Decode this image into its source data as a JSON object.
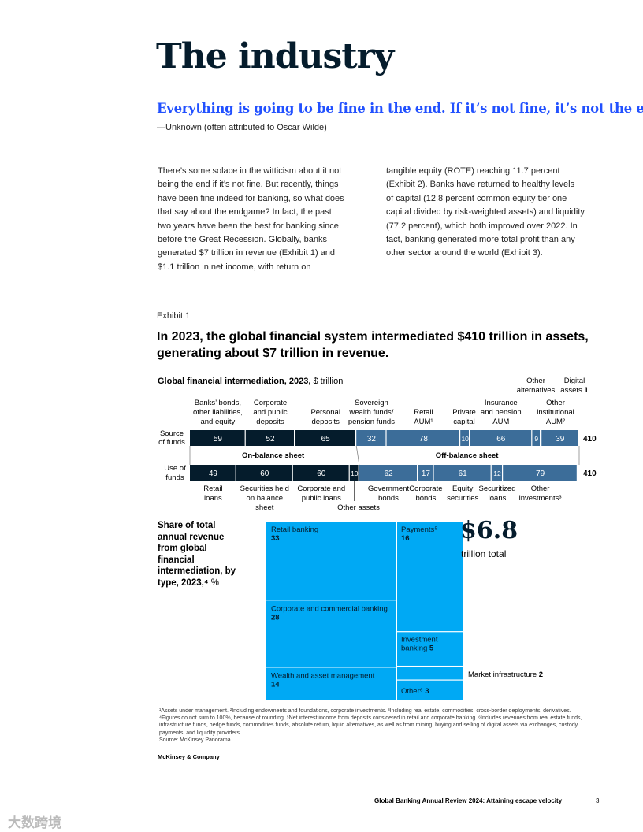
{
  "page": {
    "title": "The industry",
    "quote": "Everything is going to be fine in the end. If it’s not fine, it’s not the end.",
    "attribution": "—Unknown (often attributed to Oscar Wilde)",
    "body_left": [
      "There’s some solace in the witticism about it not",
      "being the end if it’s not fine. But recently, things",
      "have been fine indeed for banking, so what does",
      "that say about the endgame? In fact, the past",
      "two years have been the best for banking since",
      "before the Great Recession. Globally, banks",
      "generated $7 trillion in revenue (Exhibit 1) and",
      "$1.1 trillion in net income, with return on"
    ],
    "body_right": [
      "tangible equity (ROTE) reaching 11.7 percent",
      "(Exhibit 2). Banks have returned to healthy levels",
      "of capital (12.8 percent common equity tier one",
      "capital divided by risk-weighted assets) and liquidity",
      "(77.2 percent), which both improved over 2022. In",
      "fact, banking generated more total profit than any",
      "other sector around the world (Exhibit 3)."
    ],
    "exhibit_label": "Exhibit 1",
    "exhibit_headline": "In 2023, the global financial system intermediated $410 trillion in assets, generating about $7 trillion in revenue.",
    "footnotes": "¹Assets under management. ²Including endowments and foundations, corporate investments. ³Including real estate, commodities, cross-border deployments, derivatives. ⁴Figures do not sum to 100%, because of rounding. ⁵Net interest income from deposits considered in retail and corporate banking. ⁶Includes revenues from real estate funds, infrastructure funds, hedge funds, commodities funds, absolute return, liquid alternatives, as well as from mining, buying and selling of digital assets via exchanges, custody, payments, and liquidity providers.",
    "source": "Source: McKinsey Panorama",
    "brand": "McKinsey & Company",
    "footer": "Global Banking Annual Review 2024: Attaining escape velocity",
    "page_number": "3",
    "watermark": "大数跨境"
  },
  "chart_data": [
    {
      "type": "bar",
      "orientation": "horizontal-stacked",
      "title": "Global financial intermediation, 2023,",
      "unit": "$ trillion",
      "colors": {
        "on_balance": "#051c2c",
        "off_balance": "#3c6d99",
        "dark_text": "#ffffff"
      },
      "section_labels": {
        "on_balance": "On-balance sheet",
        "off_balance": "Off-balance sheet"
      },
      "source_of_funds": {
        "label": "Source of funds",
        "total": "410",
        "segments": [
          {
            "name": "Banks’ bonds, other liabilities, and equity",
            "value": 59,
            "group": "on_balance"
          },
          {
            "name": "Corporate and public deposits",
            "value": 52,
            "group": "on_balance"
          },
          {
            "name": "Personal deposits",
            "value": 65,
            "group": "on_balance"
          },
          {
            "name": "Sovereign wealth funds/ pension funds",
            "value": 32,
            "group": "off_balance"
          },
          {
            "name": "Retail AUM¹",
            "value": 78,
            "group": "off_balance"
          },
          {
            "name": "Private capital",
            "value": 10,
            "group": "off_balance"
          },
          {
            "name": "Insurance and pension AUM",
            "value": 66,
            "group": "off_balance"
          },
          {
            "name": "Other alternatives",
            "value": 9,
            "group": "off_balance"
          },
          {
            "name": "Digital assets",
            "value": 1,
            "group": "off_balance"
          },
          {
            "name": "Other institutional AUM²",
            "value": 39,
            "group": "off_balance"
          }
        ]
      },
      "use_of_funds": {
        "label": "Use of funds",
        "total": "410",
        "segments": [
          {
            "name": "Retail loans",
            "value": 49,
            "group": "on_balance"
          },
          {
            "name": "Securities held on balance sheet",
            "value": 60,
            "group": "on_balance"
          },
          {
            "name": "Corporate and public loans",
            "value": 60,
            "group": "on_balance"
          },
          {
            "name": "Other assets",
            "value": 10,
            "group": "on_balance"
          },
          {
            "name": "Government bonds",
            "value": 62,
            "group": "off_balance"
          },
          {
            "name": "Corporate bonds",
            "value": 17,
            "group": "off_balance"
          },
          {
            "name": "Equity securities",
            "value": 61,
            "group": "off_balance"
          },
          {
            "name": "Securitized loans",
            "value": 12,
            "group": "off_balance"
          },
          {
            "name": "Other investments³",
            "value": 79,
            "group": "off_balance"
          }
        ]
      }
    },
    {
      "type": "treemap",
      "title": "Share of total annual revenue from global financial intermediation, by type, 2023,⁴",
      "unit": "%",
      "total_value": "$6.8",
      "total_label": "trillion total",
      "color": "#00a9f4",
      "segments": [
        {
          "name": "Retail banking",
          "value": 33
        },
        {
          "name": "Corporate and commercial banking",
          "value": 28
        },
        {
          "name": "Wealth and asset management",
          "value": 14
        },
        {
          "name": "Payments⁵",
          "value": 16
        },
        {
          "name": "Investment banking",
          "value": 5
        },
        {
          "name": "Market infrastructure",
          "value": 2
        },
        {
          "name": "Other⁶",
          "value": 3
        }
      ]
    }
  ]
}
